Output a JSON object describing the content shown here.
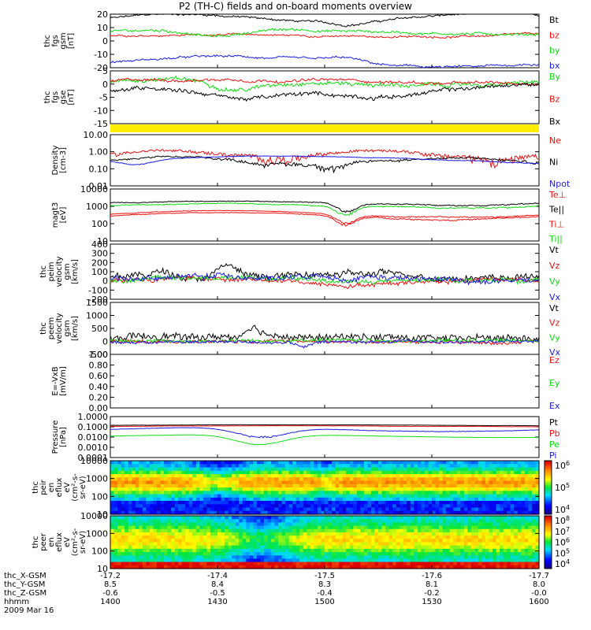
{
  "title": "P2 (TH-C) fields and on-board moments overview",
  "colors": {
    "black": "#000000",
    "red": "#ee1010",
    "green": "#11dd11",
    "blue": "#1a1ae6",
    "yellow": "#ffee00"
  },
  "panels": [
    {
      "id": "fgs_gsm",
      "ylabel": [
        "thc",
        "fgs",
        "gsm",
        "[nT]"
      ],
      "ylim": [
        -20,
        20
      ],
      "ticks": [
        "20",
        "10",
        "0",
        "-10",
        "-20"
      ],
      "legend": [
        {
          "text": "Bt",
          "color": "black"
        },
        {
          "text": "bz",
          "color": "red"
        },
        {
          "text": "by",
          "color": "green"
        },
        {
          "text": "bx",
          "color": "blue"
        }
      ]
    },
    {
      "id": "fgs_gse",
      "ylabel": [
        "thc",
        "fgs",
        "gse",
        "[nT]"
      ],
      "ylim": [
        -15,
        5
      ],
      "ticks": [
        "5",
        "0",
        "-5",
        "-10",
        "-15"
      ],
      "legend": [
        {
          "text": "By",
          "color": "green"
        },
        {
          "text": "Bz",
          "color": "red"
        },
        {
          "text": "Bx",
          "color": "black"
        }
      ]
    },
    {
      "id": "density",
      "ylabel": [
        "Density",
        "[cm-3]"
      ],
      "ylim": [
        0.01,
        10
      ],
      "ticks": [
        "10.00",
        "1.00",
        "0.10",
        "0.01"
      ],
      "legend": [
        {
          "text": "Ne",
          "color": "red"
        },
        {
          "text": "Ni",
          "color": "black"
        },
        {
          "text": "Npot",
          "color": "blue"
        }
      ]
    },
    {
      "id": "temperature",
      "ylabel": [
        "magt3",
        "[eV]"
      ],
      "ylim": [
        10,
        10000
      ],
      "ticks": [
        "10000",
        "1000",
        "100",
        "10"
      ],
      "legend": [
        {
          "text": "Te⊥",
          "color": "red"
        },
        {
          "text": "Te||",
          "color": "black"
        },
        {
          "text": "Ti⊥",
          "color": "red"
        },
        {
          "text": "Ti||",
          "color": "green"
        }
      ]
    },
    {
      "id": "peim_velocity",
      "ylabel": [
        "thc",
        "peim",
        "velocity",
        "gsm",
        "[km/s]"
      ],
      "ylim": [
        -200,
        400
      ],
      "ticks": [
        "400",
        "300",
        "200",
        "100",
        "0",
        "-100",
        "-200"
      ],
      "legend": [
        {
          "text": "Vt",
          "color": "black"
        },
        {
          "text": "Vz",
          "color": "red"
        },
        {
          "text": "Vy",
          "color": "green"
        },
        {
          "text": "Vx",
          "color": "blue"
        }
      ]
    },
    {
      "id": "peem_velocity",
      "ylabel": [
        "thc",
        "peem",
        "velocity",
        "gsm",
        "[km/s]"
      ],
      "ylim": [
        -500,
        1500
      ],
      "ticks": [
        "1500",
        "1000",
        "500",
        "0",
        "-500"
      ],
      "legend": [
        {
          "text": "Vt",
          "color": "black"
        },
        {
          "text": "Vz",
          "color": "red"
        },
        {
          "text": "Vy",
          "color": "green"
        },
        {
          "text": "Vx",
          "color": "blue"
        }
      ]
    },
    {
      "id": "efield",
      "ylabel": [
        "E=-VxB",
        "[mV/m]"
      ],
      "ylim": [
        0,
        1
      ],
      "ticks": [
        "1.00",
        "0.80",
        "0.60",
        "0.40",
        "0.20",
        "0.00"
      ],
      "legend": [
        {
          "text": "Ez",
          "color": "red"
        },
        {
          "text": "Ey",
          "color": "green"
        },
        {
          "text": "Ex",
          "color": "blue"
        }
      ]
    },
    {
      "id": "pressure",
      "ylabel": [
        "Pressure",
        "[nPa]"
      ],
      "ylim": [
        0.0001,
        1
      ],
      "ticks": [
        "1.0000",
        "0.1000",
        "0.0100",
        "0.0010",
        "0.0001"
      ],
      "legend": [
        {
          "text": "Pt",
          "color": "black"
        },
        {
          "text": "Pb",
          "color": "red"
        },
        {
          "text": "Pe",
          "color": "green"
        },
        {
          "text": "Pi",
          "color": "blue"
        }
      ]
    },
    {
      "id": "peir_spec",
      "ylabel": [
        "thc",
        "peir",
        "en",
        "eflux",
        "eV",
        "(cm^2-s-",
        "sr-eV)"
      ],
      "ylim": [
        10,
        10000
      ],
      "ticks": [
        "10000",
        "1000",
        "100",
        "10"
      ],
      "colorbar": {
        "min_exp": 4,
        "max_exp": 6,
        "labels": [
          "10^6",
          "10^5",
          "10^4"
        ]
      }
    },
    {
      "id": "peer_spec",
      "ylabel": [
        "thc",
        "peer",
        "en",
        "eflux",
        "eV",
        "(cm^2-s-",
        "sr-eV)"
      ],
      "ylim": [
        10,
        10000
      ],
      "ticks": [
        "10000",
        "1000",
        "100",
        "10"
      ],
      "colorbar": {
        "min_exp": 4,
        "max_exp": 8,
        "labels": [
          "10^8",
          "10^7",
          "10^6",
          "10^5",
          "10^4"
        ]
      }
    }
  ],
  "xaxis": {
    "time_start": "1400",
    "time_end": "1600",
    "rows": [
      {
        "label": "thc_X-GSM",
        "values": [
          "-17.2",
          "-17.4",
          "-17.5",
          "-17.6",
          "-17.7"
        ]
      },
      {
        "label": "thc_Y-GSM",
        "values": [
          "8.5",
          "8.4",
          "8.3",
          "8.1",
          "8.0"
        ]
      },
      {
        "label": "thc_Z-GSM",
        "values": [
          "-0.6",
          "-0.5",
          "-0.4",
          "-0.2",
          "-0.0"
        ]
      },
      {
        "label": "hhmm",
        "values": [
          "1400",
          "1430",
          "1500",
          "1530",
          "1600"
        ]
      }
    ],
    "date": "2009 Mar 16"
  }
}
